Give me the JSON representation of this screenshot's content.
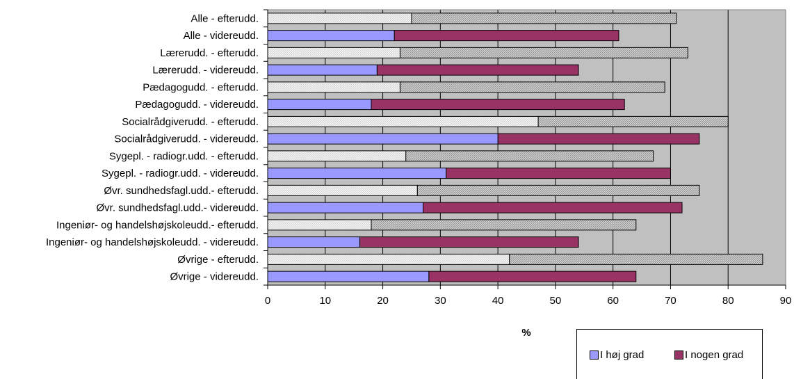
{
  "chart_data": {
    "type": "bar",
    "orientation": "horizontal",
    "stacking": "overlay",
    "categories": [
      "Alle - efterudd.",
      "Alle - videreudd.",
      "Lærerudd. - efterudd.",
      "Lærerudd. - videreudd.",
      "Pædagogudd. - efterudd.",
      "Pædagogudd. - videreudd.",
      "Socialrådgiverudd. - efterudd.",
      "Socialrådgiverudd. - videreudd.",
      "Sygepl. - radiogr.udd. - efterudd.",
      "Sygepl. - radiogr.udd. - videreudd.",
      "Øvr. sundhedsfagl.udd.- efterudd.",
      "Øvr. sundhedsfagl.udd.- videreudd.",
      "Ingeniør- og handelshøjskoleudd.- efterudd.",
      "Ingeniør- og handelshøjskoleudd. - videreudd.",
      "Øvrige - efterudd.",
      "Øvrige - videreudd."
    ],
    "series": [
      {
        "name": "I høj grad",
        "values": [
          25,
          22,
          23,
          19,
          23,
          18,
          47,
          40,
          24,
          31,
          26,
          27,
          18,
          16,
          42,
          28
        ]
      },
      {
        "name": "I nogen grad",
        "values": [
          46,
          39,
          50,
          35,
          46,
          44,
          33,
          35,
          43,
          39,
          49,
          45,
          46,
          38,
          44,
          36
        ]
      }
    ],
    "bar_styles": {
      "efterudd": [
        "#e6e6e6",
        "#bdbdbd"
      ],
      "videreudd": [
        "#9999ff",
        "#993366"
      ]
    },
    "xlabel": "%",
    "xlim": [
      0,
      90
    ],
    "xticks": [
      0,
      10,
      20,
      30,
      40,
      50,
      60,
      70,
      80,
      90
    ],
    "grid": true,
    "plot_background": "#c0c0c0",
    "legend_position": "bottom-right"
  },
  "legend": {
    "items": [
      {
        "label": "I høj grad",
        "color": "#9999ff"
      },
      {
        "label": "I nogen grad",
        "color": "#993366"
      }
    ]
  }
}
